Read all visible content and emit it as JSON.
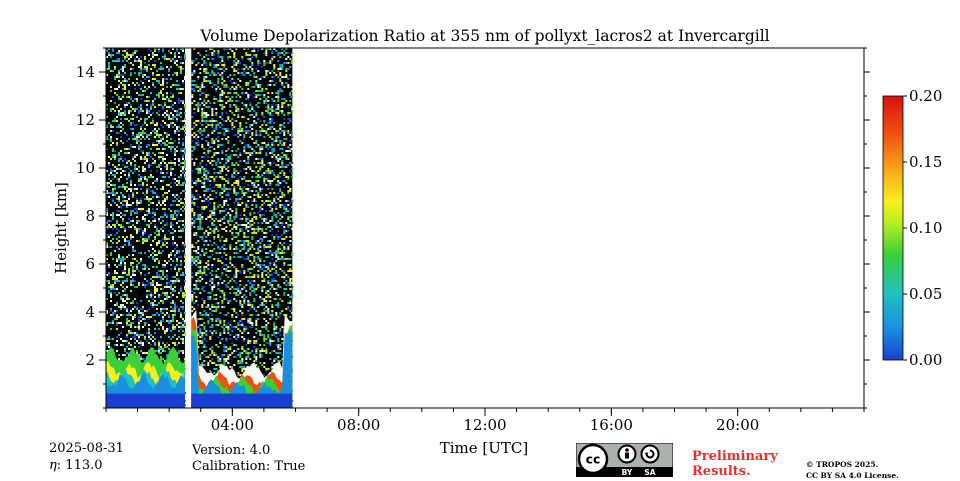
{
  "chart_data": {
    "type": "heatmap",
    "title": "Volume Depolarization Ratio at 355 nm of pollyxt_lacros2 at Invercargill",
    "xlabel": "Time [UTC]",
    "ylabel": "Height [km]",
    "x_range_hours": [
      0,
      24
    ],
    "x_ticks": [
      {
        "hour": 4,
        "label": "04:00"
      },
      {
        "hour": 8,
        "label": "08:00"
      },
      {
        "hour": 12,
        "label": "12:00"
      },
      {
        "hour": 16,
        "label": "16:00"
      },
      {
        "hour": 20,
        "label": "20:00"
      }
    ],
    "y_range_km": [
      0,
      15
    ],
    "y_ticks": [
      2,
      4,
      6,
      8,
      10,
      12,
      14
    ],
    "colorbar": {
      "range": [
        0.0,
        0.2
      ],
      "ticks": [
        "0.00",
        "0.05",
        "0.10",
        "0.15",
        "0.20"
      ],
      "colormap": [
        "#1a3fd0",
        "#1a8fe0",
        "#20c0c0",
        "#3ad03a",
        "#b8f020",
        "#f8f020",
        "#f8a818",
        "#f05010",
        "#d81010"
      ]
    },
    "data_segments_hours": [
      [
        0,
        2.5
      ],
      [
        2.7,
        5.9
      ]
    ],
    "background_color": "#000000"
  },
  "footer": {
    "date": "2025-08-31",
    "eta_label": "η",
    "eta_value": ": 113.0",
    "version": "Version: 4.0",
    "calibration": "Calibration: True",
    "prelim_line1": "Preliminary",
    "prelim_line2": "Results.",
    "copyright_line1": "© TROPOS 2025.",
    "copyright_line2": "CC BY SA 4.0 License.",
    "cc_text": "cc",
    "by_text": "BY",
    "sa_text": "SA"
  }
}
